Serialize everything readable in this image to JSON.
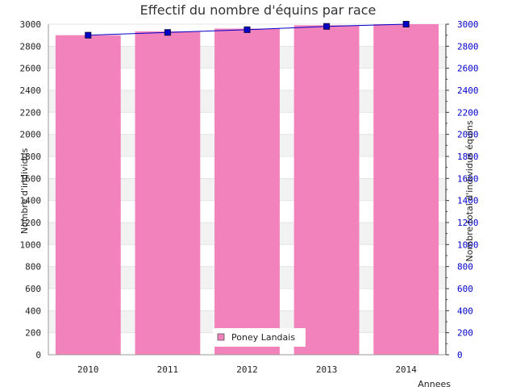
{
  "chart_data": {
    "type": "bar",
    "title": "Effectif du nombre d'équins par race",
    "xlabel": "Annees",
    "ylabel": "Nombre d'individus",
    "y2label": "Nombre total d'individus équins",
    "categories": [
      "2010",
      "2011",
      "2012",
      "2013",
      "2014"
    ],
    "series": [
      {
        "name": "Poney Landais",
        "type": "bar",
        "axis": "left",
        "values": [
          2900,
          2935,
          2960,
          2990,
          3000
        ],
        "color": "#f282bc"
      },
      {
        "type": "line",
        "axis": "right",
        "values": [
          2900,
          2925,
          2950,
          2980,
          3000
        ],
        "color": "#0000cc"
      }
    ],
    "ylim": [
      0,
      3000
    ],
    "y2lim": [
      0,
      3000
    ],
    "yticks": [
      0,
      200,
      400,
      600,
      800,
      1000,
      1200,
      1400,
      1600,
      1800,
      2000,
      2200,
      2400,
      2600,
      2800,
      3000
    ],
    "y2ticks": [
      0,
      200,
      400,
      600,
      800,
      1000,
      1200,
      1400,
      1600,
      1800,
      2000,
      2200,
      2400,
      2600,
      2800,
      3000
    ],
    "grid": true,
    "grid_band_color": "#f2f2f2",
    "legend_position": "bottom-center"
  }
}
